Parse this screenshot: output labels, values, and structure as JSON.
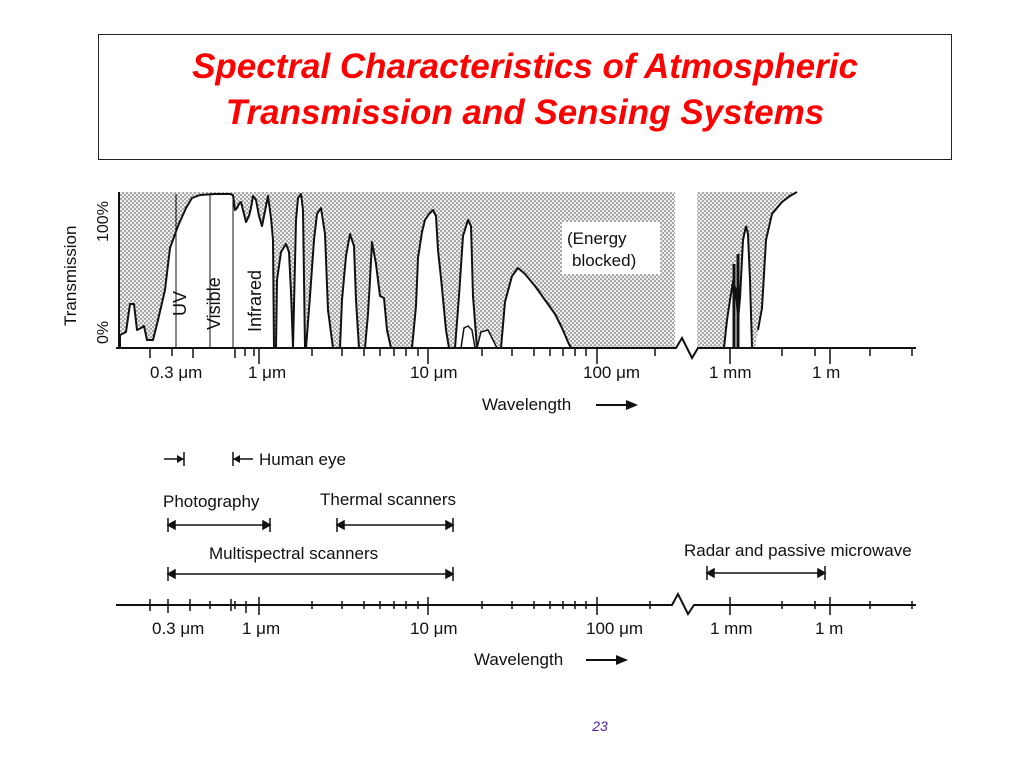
{
  "slide": {
    "title_line1": "Spectral Characteristics of Atmospheric",
    "title_line2": "Transmission and Sensing Systems",
    "page_number": "23"
  },
  "colors": {
    "title": "#ff0000",
    "page_number": "#4b1ea0",
    "blocked_fill": "#c8c8c8",
    "ink": "#111111"
  },
  "transmission_panel": {
    "y_axis_label": "Transmission",
    "y_top": "100%",
    "y_bottom": "0%",
    "band_labels": [
      "UV",
      "Visible",
      "Infrared"
    ],
    "annotation_line1": "(Energy",
    "annotation_line2": "blocked)",
    "tick_labels": [
      "0.3 μm",
      "1 μm",
      "10 μm",
      "100 μm",
      "1 mm",
      "1 m"
    ],
    "x_axis_label": "Wavelength"
  },
  "systems_panel": {
    "systems": [
      "Human eye",
      "Photography",
      "Thermal scanners",
      "Multispectral scanners",
      "Radar and passive microwave"
    ],
    "tick_labels": [
      "0.3 μm",
      "1 μm",
      "10 μm",
      "100 μm",
      "1 mm",
      "1 m"
    ],
    "x_axis_label": "Wavelength"
  }
}
